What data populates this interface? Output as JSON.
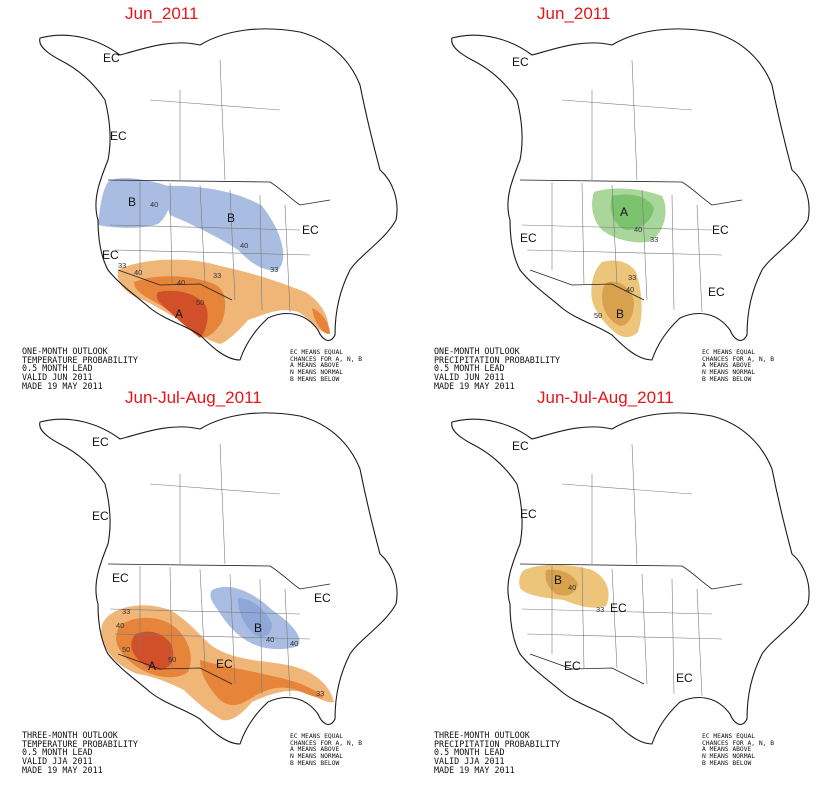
{
  "colors": {
    "title": "#e8141b",
    "above_light": "#f0b678",
    "above_mid": "#e6853a",
    "above_dark": "#d1502a",
    "below_light": "#a9bde3",
    "below_mid": "#8ea6d8",
    "wet_light": "#a8d69b",
    "wet_mid": "#7cc36f",
    "dry_light": "#ecc47a",
    "dry_mid": "#d8a14d"
  },
  "legend": [
    "EC MEANS EQUAL",
    "CHANCES FOR A, N, B",
    "A MEANS ABOVE",
    "N MEANS NORMAL",
    "B MEANS BELOW"
  ],
  "panels": [
    {
      "id": "temp-1mo",
      "title": "Jun_2011",
      "caption": [
        "ONE-MONTH OUTLOOK",
        "TEMPERATURE PROBABILITY",
        "0.5 MONTH LEAD",
        "VALID JUN 2011",
        "MADE 19 MAY 2011"
      ],
      "labels": {
        "ec1": "EC",
        "ec2": "EC",
        "ec3": "EC",
        "ec4": "EC",
        "b1": "B",
        "b2": "B",
        "a1": "A"
      },
      "contours": {
        "c1": "40",
        "c2": "40",
        "c3": "33",
        "c4": "33",
        "c5": "40",
        "c6": "33",
        "c7": "40",
        "c8": "50"
      }
    },
    {
      "id": "precip-1mo",
      "title": "Jun_2011",
      "caption": [
        "ONE-MONTH OUTLOOK",
        "PRECIPITATION PROBABILITY",
        "0.5 MONTH LEAD",
        "VALID JUN 2011",
        "MADE 19 MAY 2011"
      ],
      "labels": {
        "ec1": "EC",
        "ec2": "EC",
        "ec3": "EC",
        "ec4": "EC",
        "a1": "A",
        "b1": "B"
      },
      "contours": {
        "c1": "40",
        "c2": "33",
        "c3": "33",
        "c4": "40",
        "c5": "50"
      }
    },
    {
      "id": "temp-3mo",
      "title": "Jun-Jul-Aug_2011",
      "caption": [
        "THREE-MONTH OUTLOOK",
        "TEMPERATURE PROBABILITY",
        "0.5 MONTH LEAD",
        "VALID JJA 2011",
        "MADE 19 MAY 2011"
      ],
      "labels": {
        "ec1": "EC",
        "ec2": "EC",
        "ec3": "EC",
        "ec4": "EC",
        "ec5": "EC",
        "b1": "B",
        "a1": "A"
      },
      "contours": {
        "c1": "33",
        "c2": "40",
        "c3": "50",
        "c4": "50",
        "c5": "40",
        "c6": "40",
        "c7": "33"
      }
    },
    {
      "id": "precip-3mo",
      "title": "Jun-Jul-Aug_2011",
      "caption": [
        "THREE-MONTH OUTLOOK",
        "PRECIPITATION PROBABILITY",
        "0.5 MONTH LEAD",
        "VALID JJA 2011",
        "MADE 19 MAY 2011"
      ],
      "labels": {
        "ec1": "EC",
        "ec2": "EC",
        "ec3": "EC",
        "ec4": "EC",
        "ec5": "EC",
        "b1": "B"
      },
      "contours": {
        "c1": "40",
        "c2": "33"
      }
    }
  ]
}
